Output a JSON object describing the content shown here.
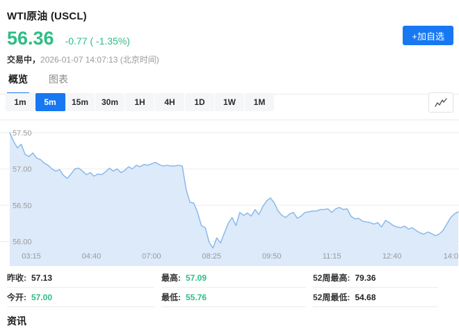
{
  "colors": {
    "accent_blue": "#1778f2",
    "down_green": "#2ebd85",
    "chart_line": "#8ab9ea",
    "chart_fill": "#ddeafa",
    "grid_line": "#ededed",
    "axis_text": "#999999"
  },
  "header": {
    "title": "WTI原油 (USCL)",
    "price": "56.36",
    "change": "-0.77 ( -1.35%)",
    "status_label": "交易中，",
    "status_time": "2026-01-07 14:07:13 (北京时间)",
    "watchlist_button": "+加自选"
  },
  "tabs": [
    {
      "label": "概览",
      "active": true
    },
    {
      "label": "图表",
      "active": false
    }
  ],
  "ranges": [
    "1m",
    "5m",
    "15m",
    "30m",
    "1H",
    "4H",
    "1D",
    "1W",
    "1M"
  ],
  "active_range": "5m",
  "chart_data": {
    "type": "area",
    "x_tick_labels": [
      "03:15",
      "04:40",
      "07:00",
      "08:25",
      "09:50",
      "11:15",
      "12:40",
      "14:0"
    ],
    "y_ticks": [
      57.5,
      57.0,
      56.5,
      56.0
    ],
    "y_tick_labels": [
      "57.50",
      "57.00",
      "56.50",
      "56.00"
    ],
    "ylim": [
      55.66,
      57.68
    ],
    "grid": true,
    "series": [
      {
        "name": "price",
        "values": [
          57.5,
          57.38,
          57.29,
          57.34,
          57.2,
          57.17,
          57.22,
          57.15,
          57.13,
          57.08,
          57.05,
          57.0,
          56.97,
          56.99,
          56.91,
          56.87,
          56.93,
          57.0,
          57.01,
          56.97,
          56.92,
          56.95,
          56.9,
          56.93,
          56.92,
          56.96,
          57.01,
          56.97,
          57.0,
          56.95,
          56.98,
          57.03,
          57.0,
          57.05,
          57.03,
          57.06,
          57.05,
          57.07,
          57.09,
          57.06,
          57.04,
          57.05,
          57.04,
          57.04,
          57.05,
          57.04,
          56.72,
          56.54,
          56.53,
          56.4,
          56.22,
          56.19,
          55.99,
          55.91,
          56.05,
          55.98,
          56.12,
          56.25,
          56.33,
          56.22,
          56.4,
          56.36,
          56.39,
          56.35,
          56.44,
          56.37,
          56.48,
          56.56,
          56.6,
          56.53,
          56.42,
          56.36,
          56.33,
          56.38,
          56.4,
          56.32,
          56.35,
          56.4,
          56.41,
          56.42,
          56.42,
          56.44,
          56.44,
          56.45,
          56.4,
          56.45,
          56.47,
          56.44,
          56.45,
          56.35,
          56.31,
          56.32,
          56.28,
          56.27,
          56.26,
          56.24,
          56.26,
          56.2,
          56.29,
          56.26,
          56.22,
          56.2,
          56.19,
          56.21,
          56.17,
          56.19,
          56.15,
          56.12,
          56.1,
          56.13,
          56.11,
          56.08,
          56.1,
          56.15,
          56.24,
          56.33,
          56.38,
          56.41
        ]
      }
    ]
  },
  "stats": [
    {
      "label": "昨收:",
      "value": "57.13",
      "value_class": "val dark"
    },
    {
      "label": "最高:",
      "value": "57.09",
      "value_class": "val green"
    },
    {
      "label": "52周最高:",
      "value": "79.36",
      "value_class": "val dark"
    },
    {
      "label": "今开:",
      "value": "57.00",
      "value_class": "val green"
    },
    {
      "label": "最低:",
      "value": "55.76",
      "value_class": "val green"
    },
    {
      "label": "52周最低:",
      "value": "54.68",
      "value_class": "val dark"
    }
  ],
  "footer": {
    "news_title": "资讯"
  }
}
